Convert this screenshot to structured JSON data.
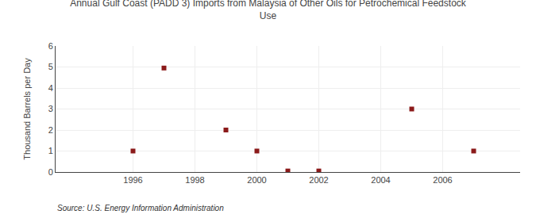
{
  "chart_data": {
    "type": "scatter",
    "title": "Annual Gulf Coast (PADD 3) Imports from Malaysia of Other Oils for Petrochemical Feedstock\nUse",
    "y_label": "Thousand Barrels per Day",
    "annotations": [
      "Source: U.S. Energy Information Administration"
    ],
    "x": [
      1996,
      1997,
      1999,
      2000,
      2001,
      2002,
      2005,
      2007
    ],
    "values": [
      1.0,
      4.95,
      2.0,
      1.0,
      0.05,
      0.05,
      3.0,
      1.0
    ],
    "color": "#8b1a1a",
    "marker": "square",
    "xlim": [
      1993.5,
      2008.5
    ],
    "xticks": [
      1996,
      1998,
      2000,
      2002,
      2004,
      2006
    ],
    "ylim": [
      0,
      6
    ],
    "yticks": [
      0,
      1,
      2,
      3,
      4,
      5,
      6
    ],
    "grid": true
  }
}
